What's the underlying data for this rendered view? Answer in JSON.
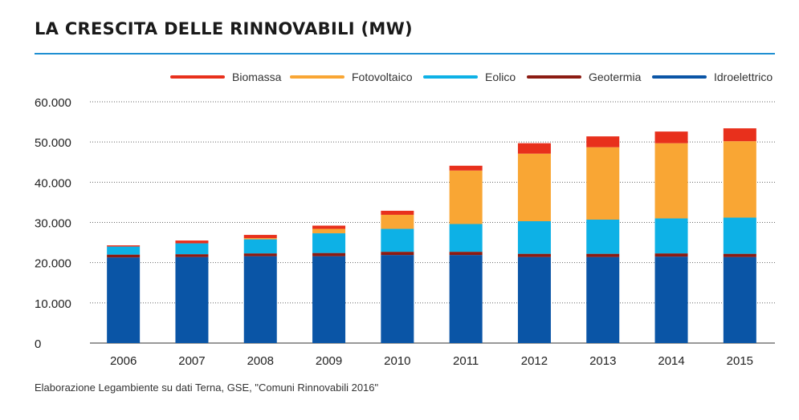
{
  "title": "LA CRESCITA DELLE RINNOVABILI (MW)",
  "source": "Elaborazione Legambiente su dati Terna, GSE, \"Comuni Rinnovabili 2016\"",
  "colors": {
    "rule": "#1f8fd2",
    "Biomassa": "#e8301c",
    "Fotovoltaico": "#f9a634",
    "Eolico": "#0db1e6",
    "Geotermia": "#8c1b12",
    "Idroelettrico": "#0a55a6"
  },
  "chart_data": {
    "type": "bar",
    "stacked": true,
    "title": "LA CRESCITA DELLE RINNOVABILI (MW)",
    "categories": [
      "2006",
      "2007",
      "2008",
      "2009",
      "2010",
      "2011",
      "2012",
      "2013",
      "2014",
      "2015"
    ],
    "legend_order": [
      "Biomassa",
      "Fotovoltaico",
      "Eolico",
      "Geotermia",
      "Idroelettrico"
    ],
    "series": [
      {
        "name": "Idroelettrico",
        "values": [
          21300,
          21400,
          21600,
          21600,
          21900,
          21900,
          21400,
          21400,
          21500,
          21400
        ]
      },
      {
        "name": "Geotermia",
        "values": [
          700,
          700,
          700,
          800,
          800,
          800,
          800,
          800,
          800,
          800
        ]
      },
      {
        "name": "Eolico",
        "values": [
          2000,
          2700,
          3500,
          4900,
          5700,
          6900,
          8100,
          8500,
          8700,
          9000
        ]
      },
      {
        "name": "Fotovoltaico",
        "values": [
          0,
          0,
          300,
          1100,
          3500,
          13300,
          16800,
          18000,
          18700,
          19000
        ]
      },
      {
        "name": "Biomassa",
        "values": [
          300,
          700,
          800,
          800,
          1000,
          1200,
          2600,
          2700,
          2900,
          3200
        ]
      }
    ],
    "ylim": [
      0,
      60000
    ],
    "yticks": [
      "0",
      "10.000",
      "20.000",
      "30.000",
      "40.000",
      "50.000",
      "60.000"
    ],
    "ytick_values": [
      0,
      10000,
      20000,
      30000,
      40000,
      50000,
      60000
    ],
    "grid": true,
    "legend_position": "top"
  }
}
